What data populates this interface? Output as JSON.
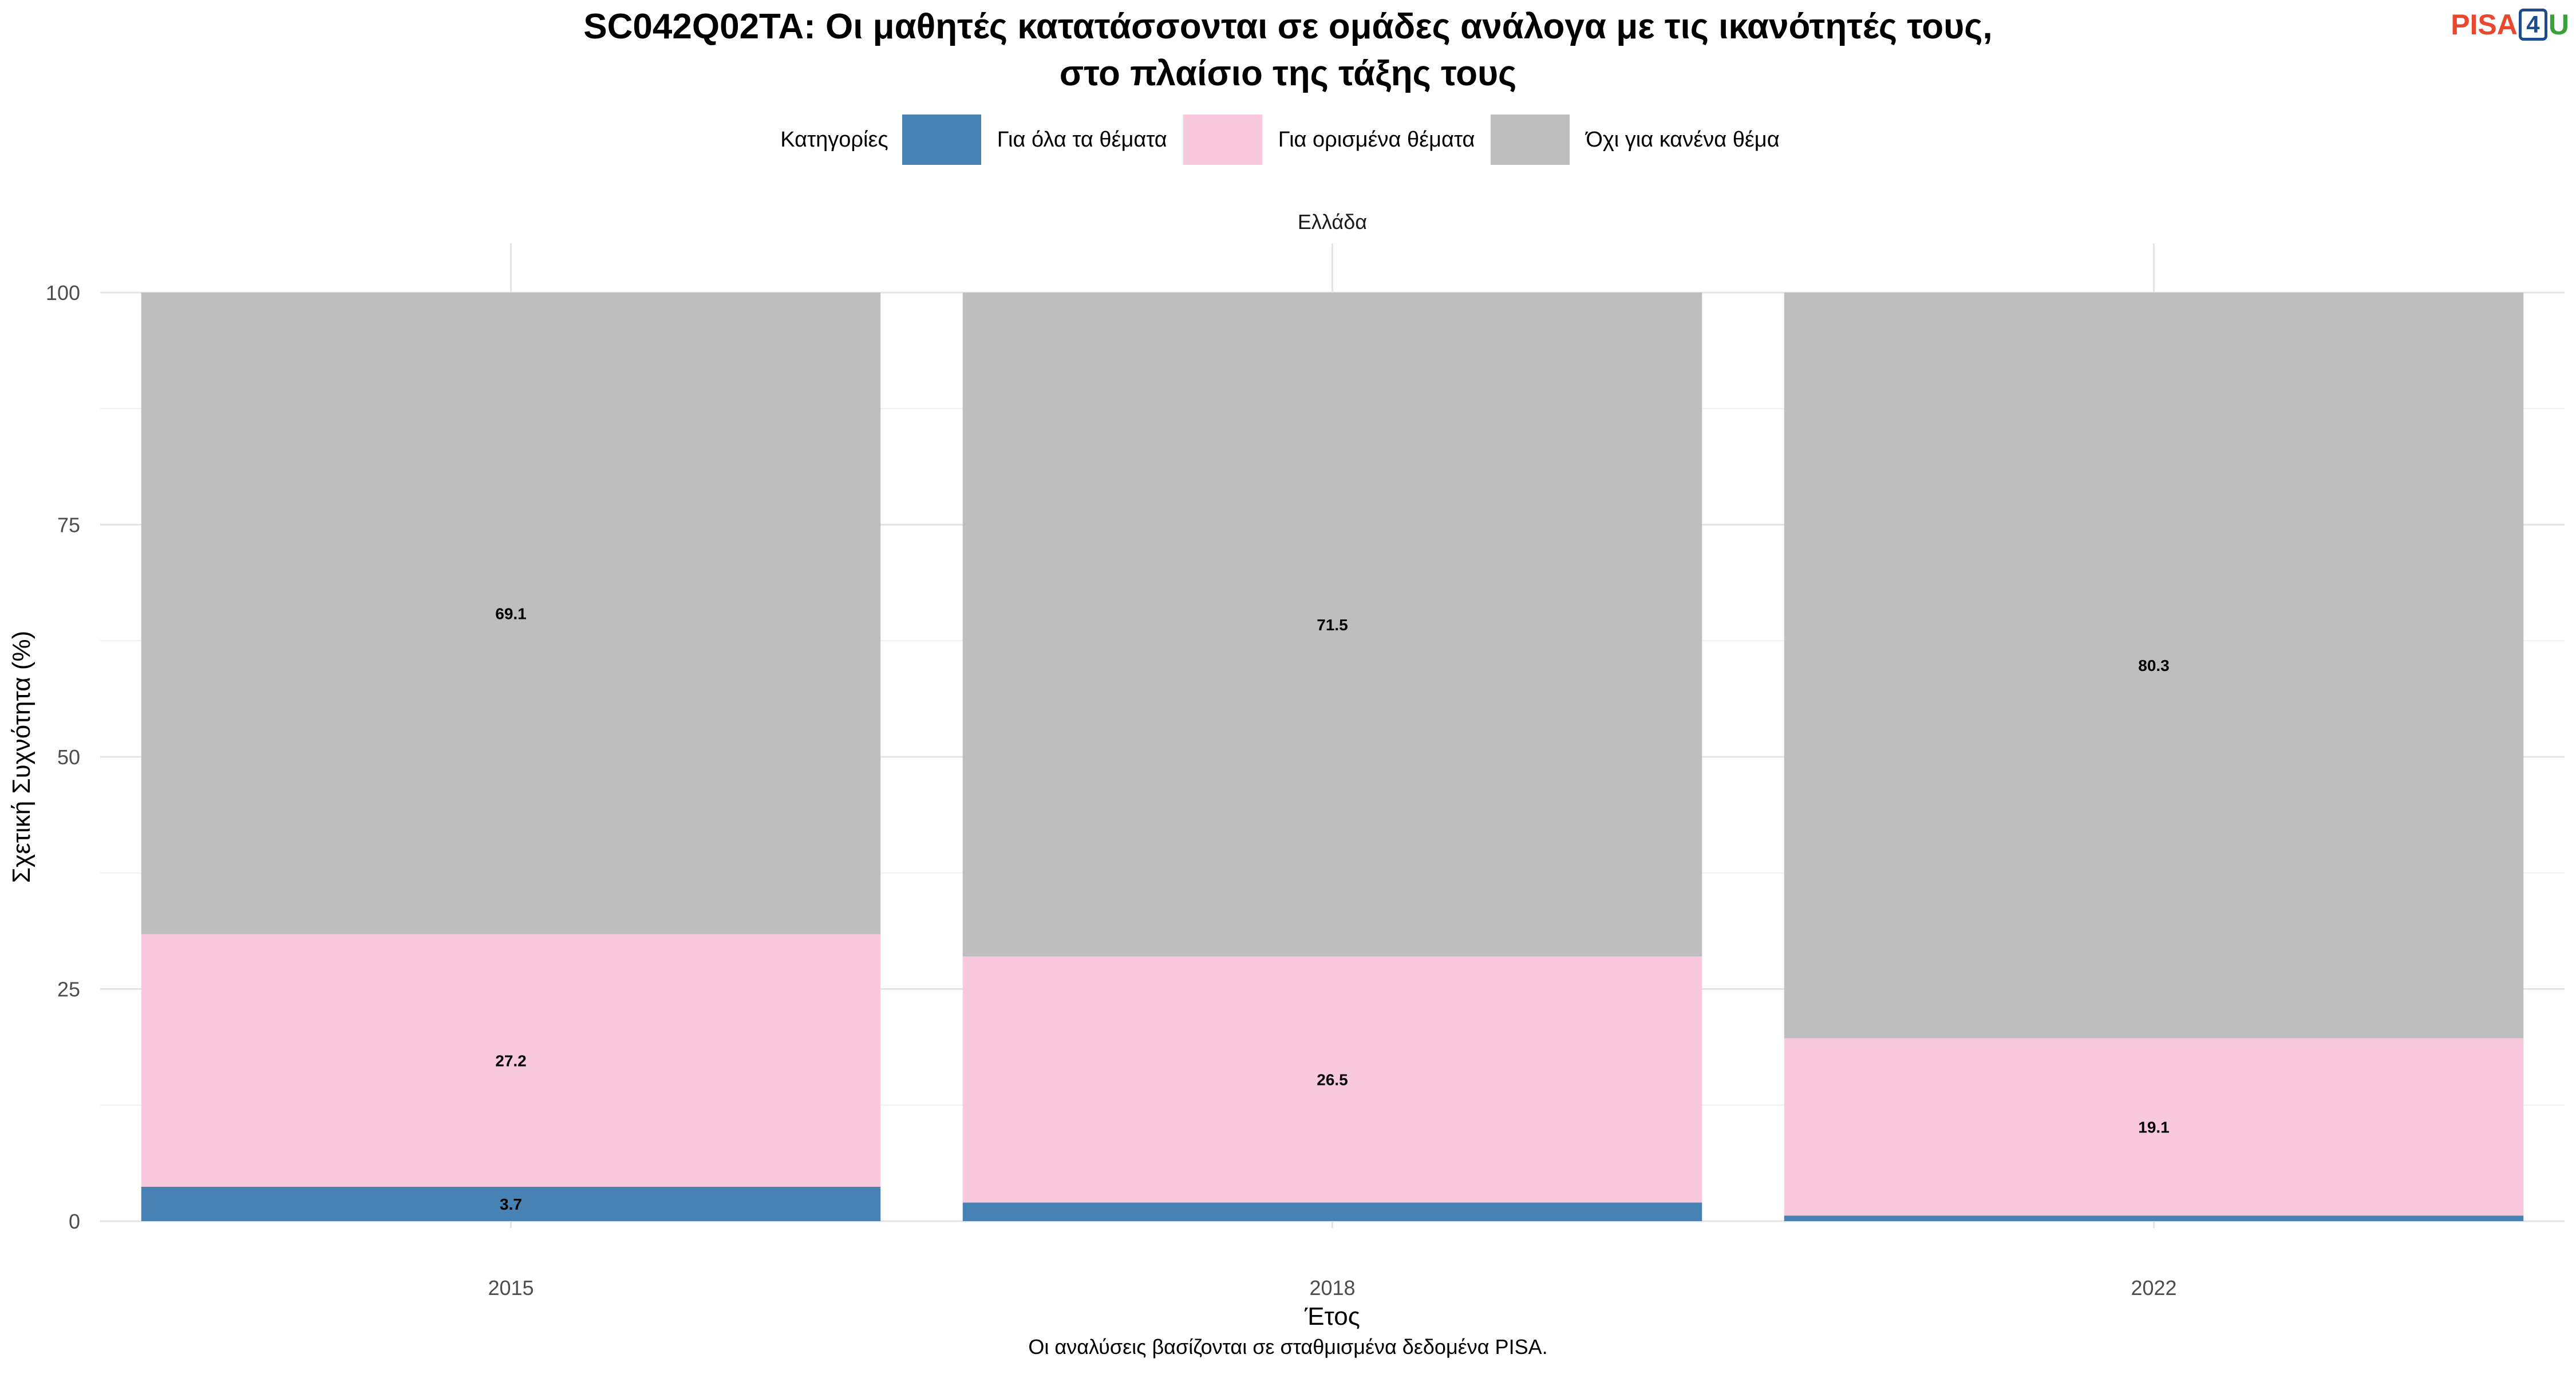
{
  "title_line1": "SC042Q02TA: Οι μαθητές κατατάσσονται σε ομάδες ανάλογα με τις ικανότητές τους,",
  "title_line2": "στο πλαίσιο της τάξης τους",
  "logo": {
    "p": "PISA",
    "four": "4",
    "u": "U",
    "colors": {
      "pisa": "#e8482e",
      "four": "#1c4c8c",
      "u": "#3aa13a"
    }
  },
  "legend": {
    "title": "Κατηγορίες"
  },
  "caption": "Οι αναλύσεις βασίζονται σε σταθμισμένα δεδομένα PISA.",
  "chart_data": {
    "type": "bar",
    "stacked": true,
    "facet": "Ελλάδα",
    "categories": [
      "2015",
      "2018",
      "2022"
    ],
    "series": [
      {
        "name": "Για όλα τα θέματα",
        "color": "#4682b4",
        "values": [
          3.7,
          2.0,
          0.6
        ],
        "labels": [
          "3.7",
          "",
          ""
        ]
      },
      {
        "name": "Για ορισμένα θέματα",
        "color": "#f8c8dc",
        "values": [
          27.2,
          26.5,
          19.1
        ],
        "labels": [
          "27.2",
          "26.5",
          "19.1"
        ]
      },
      {
        "name": "Όχι για κανένα θέμα",
        "color": "#bebebe",
        "values": [
          69.1,
          71.5,
          80.3
        ],
        "labels": [
          "69.1",
          "71.5",
          "80.3"
        ]
      }
    ],
    "xlabel": "Έτος",
    "ylabel": "Σχετική Συχνότητα (%)",
    "ylim": [
      0,
      100
    ],
    "yticks": [
      0,
      25,
      50,
      75,
      100
    ],
    "grid": true,
    "legend_position": "top"
  }
}
